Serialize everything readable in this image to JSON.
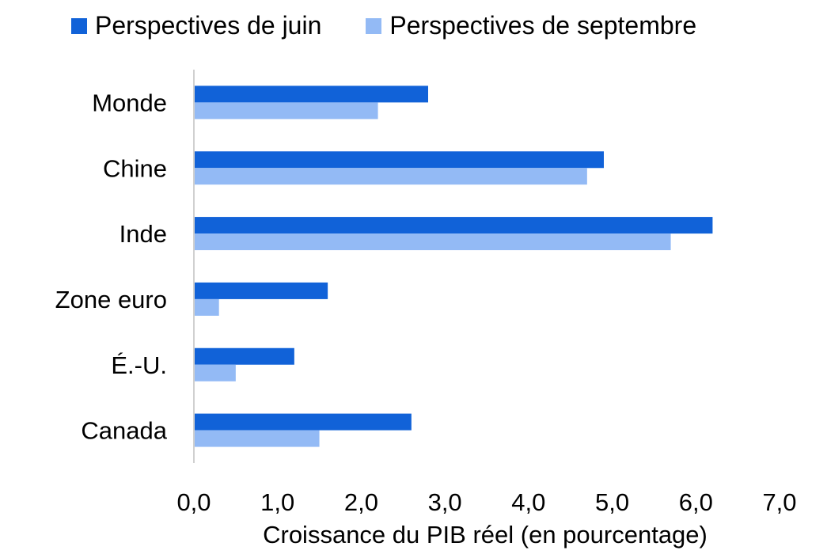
{
  "chart_data": {
    "type": "bar",
    "orientation": "horizontal",
    "categories": [
      "Monde",
      "Chine",
      "Inde",
      "Zone euro",
      "É.-U.",
      "Canada"
    ],
    "series": [
      {
        "name": "Perspectives de juin",
        "color": "#1162d8",
        "values": [
          2.8,
          4.9,
          6.2,
          1.6,
          1.2,
          2.6
        ]
      },
      {
        "name": "Perspectives de septembre",
        "color": "#93baf5",
        "values": [
          2.2,
          4.7,
          5.7,
          0.3,
          0.5,
          1.5
        ]
      }
    ],
    "xlabel": "Croissance du PIB réel (en pourcentage)",
    "ylabel": "",
    "xlim": [
      0,
      7
    ],
    "xticks": [
      "0,0",
      "1,0",
      "2,0",
      "3,0",
      "4,0",
      "5,0",
      "6,0",
      "7,0"
    ],
    "grid": false,
    "legend_position": "top"
  }
}
